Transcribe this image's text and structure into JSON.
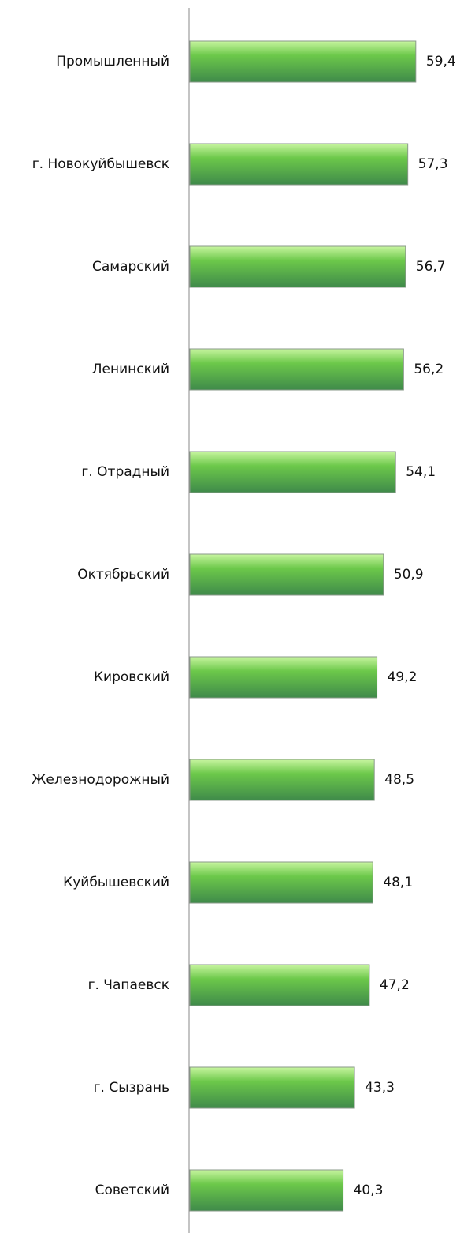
{
  "chart_data": {
    "type": "bar",
    "orientation": "horizontal",
    "categories": [
      "Промышленный",
      "г. Новокуйбышевск",
      "Самарский",
      "Ленинский",
      "г. Отрадный",
      "Октябрьский",
      "Кировский",
      "Железнодорожный",
      "Куйбышевский",
      "г. Чапаевск",
      "г. Сызрань",
      "Советский"
    ],
    "values": [
      59.4,
      57.3,
      56.7,
      56.2,
      54.1,
      50.9,
      49.2,
      48.5,
      48.1,
      47.2,
      43.3,
      40.3
    ],
    "value_labels": [
      "59,4",
      "57,3",
      "56,7",
      "56,2",
      "54,1",
      "50,9",
      "49,2",
      "48,5",
      "48,1",
      "47,2",
      "43,3",
      "40,3"
    ],
    "color": "#6cc84a",
    "xlim": [
      0,
      70
    ]
  }
}
